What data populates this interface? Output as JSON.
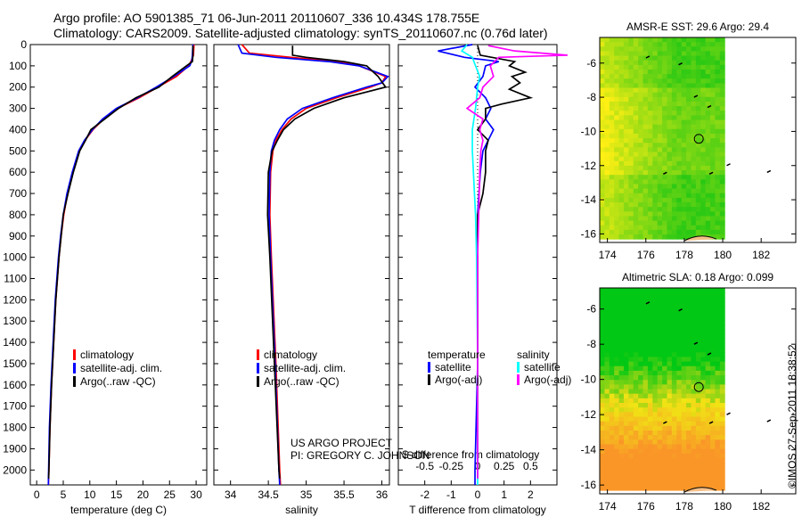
{
  "title_line1": "Argo profile: AO 5901385_71 06-Jun-2011 20110607_336 10.434S 178.755E",
  "title_line2": "Climatology: CARS2009. Satellite-adjusted climatology: synTS_20110607.nc (0.76d later)",
  "footer_vertical": "©IMOS 27-Sep-2011 18:38:52",
  "project_line1": "US ARGO PROJECT",
  "project_line2": "PI: GREGORY C. JOHNSON",
  "colors": {
    "climatology": "#ff0000",
    "satellite": "#0000ff",
    "argo": "#000000",
    "sal_satellite": "#00ffff",
    "sal_argo": "#ff00ff"
  },
  "chart_data": [
    {
      "type": "line",
      "id": "temperature",
      "xlabel": "temperature (deg C)",
      "ylabel": "",
      "xlim": [
        -1.2,
        32
      ],
      "ylim": [
        2070,
        0
      ],
      "xticks": [
        0,
        5,
        10,
        15,
        20,
        25,
        30
      ],
      "yticks": [
        0,
        100,
        200,
        300,
        400,
        500,
        600,
        700,
        800,
        900,
        1000,
        1100,
        1200,
        1300,
        1400,
        1500,
        1600,
        1700,
        1800,
        1900,
        2000
      ],
      "legend": [
        "climatology",
        "satellite-adj. clim.",
        "Argo(..raw -QC)"
      ],
      "series": [
        {
          "name": "climatology",
          "color": "#ff0000",
          "points": [
            [
              0,
              29.6
            ],
            [
              50,
              29.5
            ],
            [
              75,
              29.1
            ],
            [
              100,
              28.6
            ],
            [
              150,
              26.3
            ],
            [
              200,
              22.8
            ],
            [
              250,
              19.3
            ],
            [
              300,
              15.2
            ],
            [
              350,
              12.6
            ],
            [
              400,
              10.6
            ],
            [
              450,
              9.1
            ],
            [
              500,
              8.0
            ],
            [
              600,
              6.8
            ],
            [
              700,
              5.8
            ],
            [
              800,
              5.1
            ],
            [
              900,
              4.6
            ],
            [
              1000,
              4.2
            ],
            [
              1200,
              3.6
            ],
            [
              1400,
              3.2
            ],
            [
              1600,
              2.8
            ],
            [
              1800,
              2.5
            ],
            [
              2000,
              2.3
            ],
            [
              2070,
              2.2
            ]
          ]
        },
        {
          "name": "satellite-adj. clim.",
          "color": "#0000ff",
          "points": [
            [
              0,
              29.4
            ],
            [
              50,
              29.3
            ],
            [
              75,
              29.2
            ],
            [
              100,
              28.8
            ],
            [
              150,
              25.8
            ],
            [
              200,
              22.5
            ],
            [
              250,
              19.0
            ],
            [
              300,
              15.0
            ],
            [
              350,
              12.4
            ],
            [
              400,
              10.5
            ],
            [
              450,
              9.0
            ],
            [
              500,
              7.9
            ],
            [
              600,
              6.7
            ],
            [
              700,
              5.7
            ],
            [
              800,
              5.0
            ],
            [
              900,
              4.5
            ],
            [
              1000,
              4.1
            ],
            [
              1200,
              3.5
            ],
            [
              1400,
              3.1
            ],
            [
              1600,
              2.7
            ],
            [
              1800,
              2.4
            ],
            [
              2000,
              2.25
            ],
            [
              2070,
              2.2
            ]
          ]
        },
        {
          "name": "Argo(..raw -QC)",
          "color": "#000000",
          "points": [
            [
              5,
              29.4
            ],
            [
              50,
              29.4
            ],
            [
              80,
              29.3
            ],
            [
              100,
              28.2
            ],
            [
              150,
              25.5
            ],
            [
              200,
              23.0
            ],
            [
              250,
              18.7
            ],
            [
              300,
              15.4
            ],
            [
              350,
              12.8
            ],
            [
              400,
              10.2
            ],
            [
              450,
              9.2
            ],
            [
              500,
              8.1
            ],
            [
              600,
              6.9
            ],
            [
              700,
              5.9
            ],
            [
              800,
              5.0
            ],
            [
              900,
              4.6
            ],
            [
              1000,
              4.2
            ],
            [
              1200,
              3.6
            ],
            [
              1400,
              3.2
            ],
            [
              1600,
              2.8
            ],
            [
              1800,
              2.5
            ],
            [
              2000,
              2.3
            ],
            [
              2040,
              2.25
            ]
          ]
        }
      ]
    },
    {
      "type": "line",
      "id": "salinity",
      "xlabel": "salinity",
      "xlim": [
        33.78,
        36.1
      ],
      "ylim": [
        2070,
        0
      ],
      "xticks": [
        34,
        34.5,
        35,
        35.5,
        36
      ],
      "legend": [
        "climatology",
        "satellite-adj. clim.",
        "Argo(..raw -QC)"
      ],
      "series": [
        {
          "name": "climatology",
          "color": "#ff0000",
          "points": [
            [
              0,
              34.15
            ],
            [
              40,
              34.25
            ],
            [
              60,
              34.8
            ],
            [
              80,
              35.4
            ],
            [
              100,
              35.7
            ],
            [
              150,
              36.05
            ],
            [
              180,
              36.0
            ],
            [
              200,
              35.85
            ],
            [
              250,
              35.4
            ],
            [
              300,
              35.0
            ],
            [
              350,
              34.8
            ],
            [
              400,
              34.68
            ],
            [
              450,
              34.6
            ],
            [
              500,
              34.56
            ],
            [
              600,
              34.53
            ],
            [
              800,
              34.52
            ],
            [
              1000,
              34.54
            ],
            [
              1500,
              34.6
            ],
            [
              2000,
              34.65
            ],
            [
              2070,
              34.66
            ]
          ]
        },
        {
          "name": "satellite-adj. clim.",
          "color": "#0000ff",
          "points": [
            [
              0,
              34.1
            ],
            [
              40,
              34.15
            ],
            [
              60,
              34.6
            ],
            [
              80,
              35.3
            ],
            [
              100,
              35.7
            ],
            [
              150,
              36.08
            ],
            [
              180,
              36.0
            ],
            [
              200,
              35.8
            ],
            [
              250,
              35.35
            ],
            [
              300,
              34.95
            ],
            [
              350,
              34.75
            ],
            [
              400,
              34.65
            ],
            [
              450,
              34.58
            ],
            [
              500,
              34.54
            ],
            [
              600,
              34.52
            ],
            [
              800,
              34.51
            ],
            [
              1000,
              34.53
            ],
            [
              1500,
              34.59
            ],
            [
              2000,
              34.64
            ],
            [
              2070,
              34.65
            ]
          ]
        },
        {
          "name": "Argo(..raw -QC)",
          "color": "#000000",
          "points": [
            [
              5,
              34.82
            ],
            [
              50,
              34.82
            ],
            [
              60,
              35.0
            ],
            [
              80,
              35.5
            ],
            [
              100,
              35.8
            ],
            [
              150,
              35.95
            ],
            [
              200,
              36.05
            ],
            [
              250,
              35.5
            ],
            [
              300,
              35.1
            ],
            [
              350,
              34.85
            ],
            [
              400,
              34.7
            ],
            [
              450,
              34.62
            ],
            [
              500,
              34.55
            ],
            [
              600,
              34.5
            ],
            [
              800,
              34.49
            ],
            [
              1000,
              34.52
            ],
            [
              1500,
              34.58
            ],
            [
              2000,
              34.64
            ],
            [
              2040,
              34.65
            ]
          ]
        }
      ]
    },
    {
      "type": "line",
      "id": "differences",
      "xlabel": "T difference from climatology",
      "xlabel2": "S difference from climatology",
      "xlim": [
        -3,
        3
      ],
      "xlim_s": [
        -0.75,
        0.75
      ],
      "ylim": [
        2070,
        0
      ],
      "xticks": [
        -2,
        -1,
        0,
        1,
        2
      ],
      "xticks_s": [
        -0.5,
        -0.25,
        0,
        0.25,
        0.5
      ],
      "legend_headers": [
        "temperature",
        "salinity"
      ],
      "legend": [
        "satellite",
        "Argo(-adj)",
        "satellite",
        "Argo(-adj)"
      ],
      "series": [
        {
          "name": "T satellite",
          "axis": "T",
          "color": "#0000ff",
          "points": [
            [
              0,
              -0.2
            ],
            [
              30,
              -1.5
            ],
            [
              60,
              -0.5
            ],
            [
              80,
              0.8
            ],
            [
              100,
              0.3
            ],
            [
              150,
              0.2
            ],
            [
              200,
              -0.1
            ],
            [
              250,
              0.3
            ],
            [
              300,
              0.5
            ],
            [
              350,
              0.3
            ],
            [
              400,
              0.6
            ],
            [
              450,
              0.4
            ],
            [
              500,
              0.2
            ],
            [
              600,
              0.1
            ],
            [
              800,
              0.0
            ],
            [
              1000,
              0.0
            ],
            [
              1500,
              0.0
            ],
            [
              2000,
              -0.1
            ],
            [
              2070,
              -0.1
            ]
          ]
        },
        {
          "name": "T Argo(-adj)",
          "axis": "T",
          "color": "#000000",
          "points": [
            [
              5,
              0.0
            ],
            [
              50,
              0.1
            ],
            [
              80,
              1.4
            ],
            [
              100,
              1.2
            ],
            [
              130,
              1.8
            ],
            [
              150,
              1.3
            ],
            [
              180,
              1.6
            ],
            [
              210,
              1.2
            ],
            [
              250,
              2.0
            ],
            [
              280,
              0.9
            ],
            [
              300,
              0.3
            ],
            [
              350,
              0.3
            ],
            [
              400,
              0.0
            ],
            [
              450,
              0.4
            ],
            [
              500,
              0.3
            ],
            [
              600,
              0.3
            ],
            [
              700,
              0.2
            ],
            [
              800,
              0.0
            ],
            [
              1000,
              0.0
            ],
            [
              1500,
              0.0
            ],
            [
              2000,
              0.0
            ],
            [
              2040,
              0.0
            ]
          ]
        },
        {
          "name": "S satellite",
          "axis": "S",
          "color": "#00ffff",
          "points": [
            [
              0,
              -0.1
            ],
            [
              30,
              -0.15
            ],
            [
              60,
              -0.05
            ],
            [
              100,
              -0.02
            ],
            [
              150,
              0.02
            ],
            [
              200,
              0.0
            ],
            [
              300,
              -0.02
            ],
            [
              400,
              -0.05
            ],
            [
              500,
              -0.05
            ],
            [
              600,
              -0.04
            ],
            [
              800,
              -0.02
            ],
            [
              1000,
              -0.01
            ],
            [
              1500,
              0.0
            ],
            [
              2000,
              0.0
            ],
            [
              2070,
              0.0
            ]
          ]
        },
        {
          "name": "S Argo(-adj)",
          "axis": "S",
          "color": "#ff00ff",
          "points": [
            [
              5,
              0.1
            ],
            [
              30,
              0.35
            ],
            [
              50,
              0.85
            ],
            [
              60,
              0.2
            ],
            [
              100,
              0.12
            ],
            [
              150,
              0.15
            ],
            [
              200,
              0.05
            ],
            [
              250,
              0.02
            ],
            [
              300,
              -0.1
            ],
            [
              350,
              0.05
            ],
            [
              400,
              0.02
            ],
            [
              450,
              0.05
            ],
            [
              500,
              0.03
            ],
            [
              600,
              0.02
            ],
            [
              800,
              0.01
            ],
            [
              1000,
              0.0
            ],
            [
              1500,
              0.0
            ],
            [
              2000,
              0.0
            ],
            [
              2040,
              0.0
            ]
          ]
        }
      ]
    },
    {
      "type": "heatmap",
      "id": "sst_map",
      "title": "AMSR-E SST: 29.6 Argo: 29.4",
      "xlim": [
        173.6,
        183.8
      ],
      "ylim": [
        -16.5,
        -4.5
      ],
      "xticks": [
        174,
        176,
        178,
        180,
        182
      ],
      "yticks": [
        -6,
        -8,
        -10,
        -12,
        -14,
        -16
      ],
      "argo_position": [
        178.755,
        -10.434
      ]
    },
    {
      "type": "heatmap",
      "id": "sla_map",
      "title": "Altimetric SLA: 0.18 Argo: 0.099",
      "xlim": [
        173.6,
        183.8
      ],
      "ylim": [
        -16.5,
        -4.8
      ],
      "xticks": [
        174,
        176,
        178,
        180,
        182
      ],
      "yticks": [
        -6,
        -8,
        -10,
        -12,
        -14,
        -16
      ],
      "argo_position": [
        178.755,
        -10.434
      ]
    }
  ]
}
